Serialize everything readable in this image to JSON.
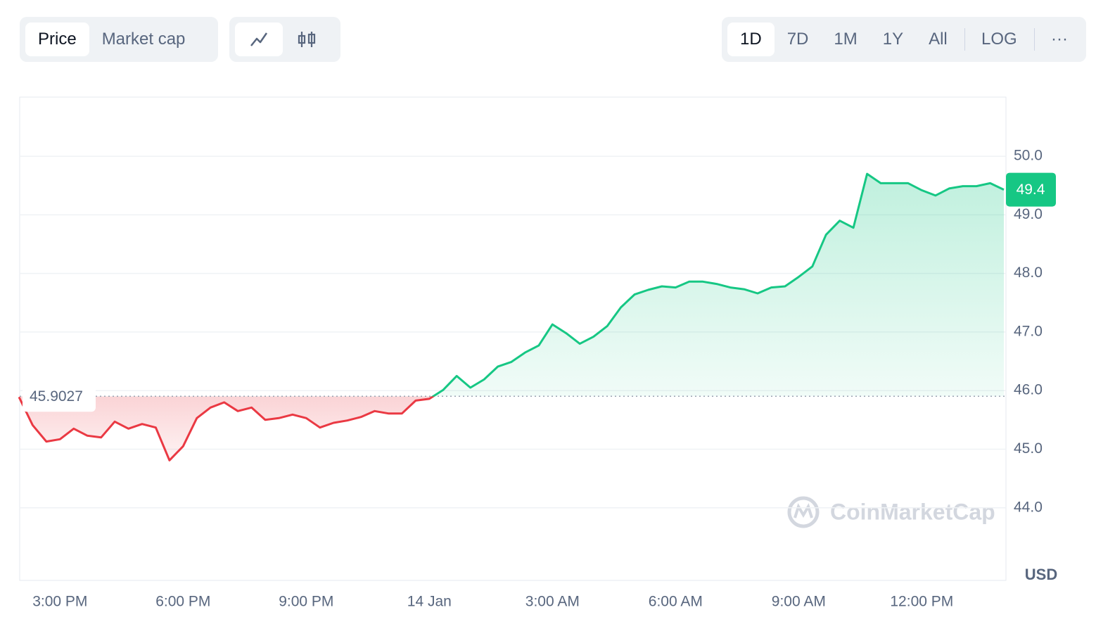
{
  "toolbar": {
    "metric_tabs": [
      "Price",
      "Market cap"
    ],
    "ranges": [
      "1D",
      "7D",
      "1M",
      "1Y",
      "All",
      "LOG"
    ],
    "more": "···"
  },
  "chart_data": {
    "type": "line",
    "watermark": "CoinMarketCap",
    "y_label": "USD",
    "x": [
      null,
      null,
      null,
      "3:00 PM",
      null,
      null,
      null,
      null,
      null,
      null,
      null,
      null,
      "6:00 PM",
      null,
      null,
      null,
      null,
      null,
      null,
      null,
      null,
      "9:00 PM",
      null,
      null,
      null,
      null,
      null,
      null,
      null,
      null,
      "14 Jan",
      null,
      null,
      null,
      null,
      null,
      null,
      null,
      null,
      "3:00 AM",
      null,
      null,
      null,
      null,
      null,
      null,
      null,
      null,
      "6:00 AM",
      null,
      null,
      null,
      null,
      null,
      null,
      null,
      null,
      "9:00 AM",
      null,
      null,
      null,
      null,
      null,
      null,
      null,
      null,
      "12:00 PM",
      null,
      null,
      null,
      null,
      null,
      null
    ],
    "values": [
      45.89,
      45.41,
      45.13,
      45.17,
      45.35,
      45.23,
      45.2,
      45.47,
      45.35,
      45.43,
      45.37,
      44.81,
      45.05,
      45.53,
      45.71,
      45.8,
      45.65,
      45.71,
      45.5,
      45.53,
      45.59,
      45.53,
      45.37,
      45.45,
      45.49,
      45.55,
      45.65,
      45.61,
      45.61,
      45.83,
      45.86,
      46.01,
      46.25,
      46.05,
      46.19,
      46.41,
      46.49,
      46.65,
      46.77,
      47.13,
      46.98,
      46.8,
      46.92,
      47.1,
      47.42,
      47.64,
      47.72,
      47.78,
      47.76,
      47.86,
      47.86,
      47.82,
      47.76,
      47.73,
      47.66,
      47.76,
      47.78,
      47.94,
      48.12,
      48.66,
      48.9,
      48.78,
      49.7,
      49.54,
      49.54,
      49.54,
      49.42,
      49.33,
      49.45,
      49.49,
      49.49,
      49.54,
      49.43
    ],
    "value_labels": [
      null,
      null,
      null,
      null,
      null,
      null,
      null,
      null,
      null,
      null,
      null,
      null,
      null,
      null,
      null,
      null,
      null,
      null,
      null,
      null,
      null,
      null,
      null,
      null,
      null,
      null,
      null,
      null,
      null,
      null,
      null,
      null,
      null,
      null,
      null,
      null,
      null,
      null,
      null,
      null,
      null,
      null,
      null,
      null,
      null,
      null,
      null,
      null,
      null,
      null,
      null,
      null,
      null,
      null,
      null,
      null,
      null,
      null,
      null,
      null,
      null,
      null,
      null,
      null,
      null,
      null,
      null,
      null,
      null,
      null,
      null,
      null,
      "49.4"
    ],
    "baseline": 45.9027,
    "up_color": "#16c784",
    "down_color": "#ea3943",
    "ylim": [
      42.76,
      51.01
    ],
    "yticks": [
      {
        "value": 44,
        "label": "44.0"
      },
      {
        "value": 45,
        "label": "45.0"
      },
      {
        "value": 46,
        "label": "46.0"
      },
      {
        "value": 47,
        "label": "47.0"
      },
      {
        "value": 48,
        "label": "48.0"
      },
      {
        "value": 49,
        "label": "49.0"
      },
      {
        "value": 50,
        "label": "50.0"
      }
    ],
    "grid": true
  }
}
